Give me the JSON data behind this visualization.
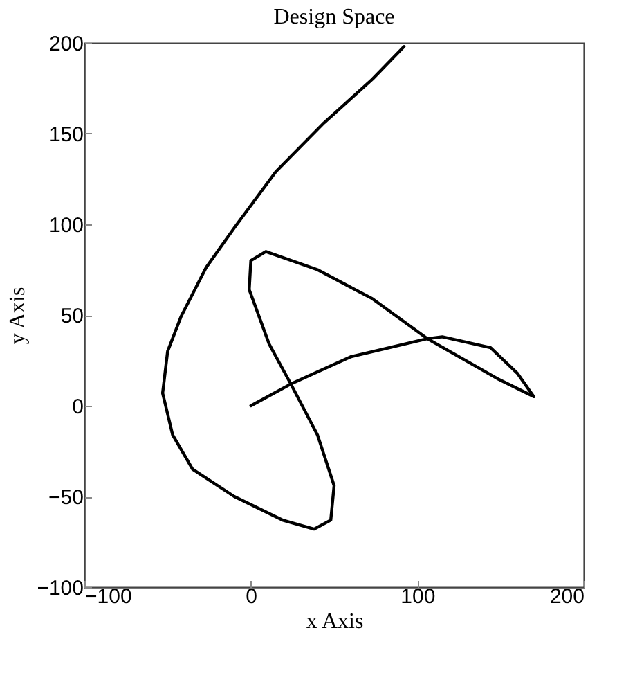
{
  "chart_data": {
    "type": "line",
    "title": "Design Space",
    "xlabel": "x Axis",
    "ylabel": "y Axis",
    "xlim": [
      -100,
      200
    ],
    "ylim": [
      -100,
      200
    ],
    "xticks": [
      -100,
      0,
      100,
      200
    ],
    "yticks": [
      -100,
      -50,
      0,
      50,
      100,
      150,
      200
    ],
    "grid": false,
    "marker": "none",
    "line_style": "solid",
    "x": [
      0,
      24,
      60,
      106,
      115,
      144,
      160,
      170,
      148,
      106,
      73,
      40,
      9,
      0,
      -1,
      11,
      24,
      40,
      50,
      48,
      38,
      19,
      -10,
      -35,
      -47,
      -53,
      -50,
      -42,
      -27,
      -10,
      15,
      44,
      73,
      92
    ],
    "series": [
      {
        "color": "#000000",
        "values": [
          0,
          12,
          27,
          37,
          38,
          32,
          18,
          5,
          15,
          37,
          59,
          75,
          85,
          80,
          64,
          34,
          12,
          -16,
          -44,
          -63,
          -68,
          -63,
          -50,
          -35,
          -16,
          7,
          30,
          49,
          76,
          98,
          129,
          156,
          180,
          198
        ]
      }
    ]
  }
}
